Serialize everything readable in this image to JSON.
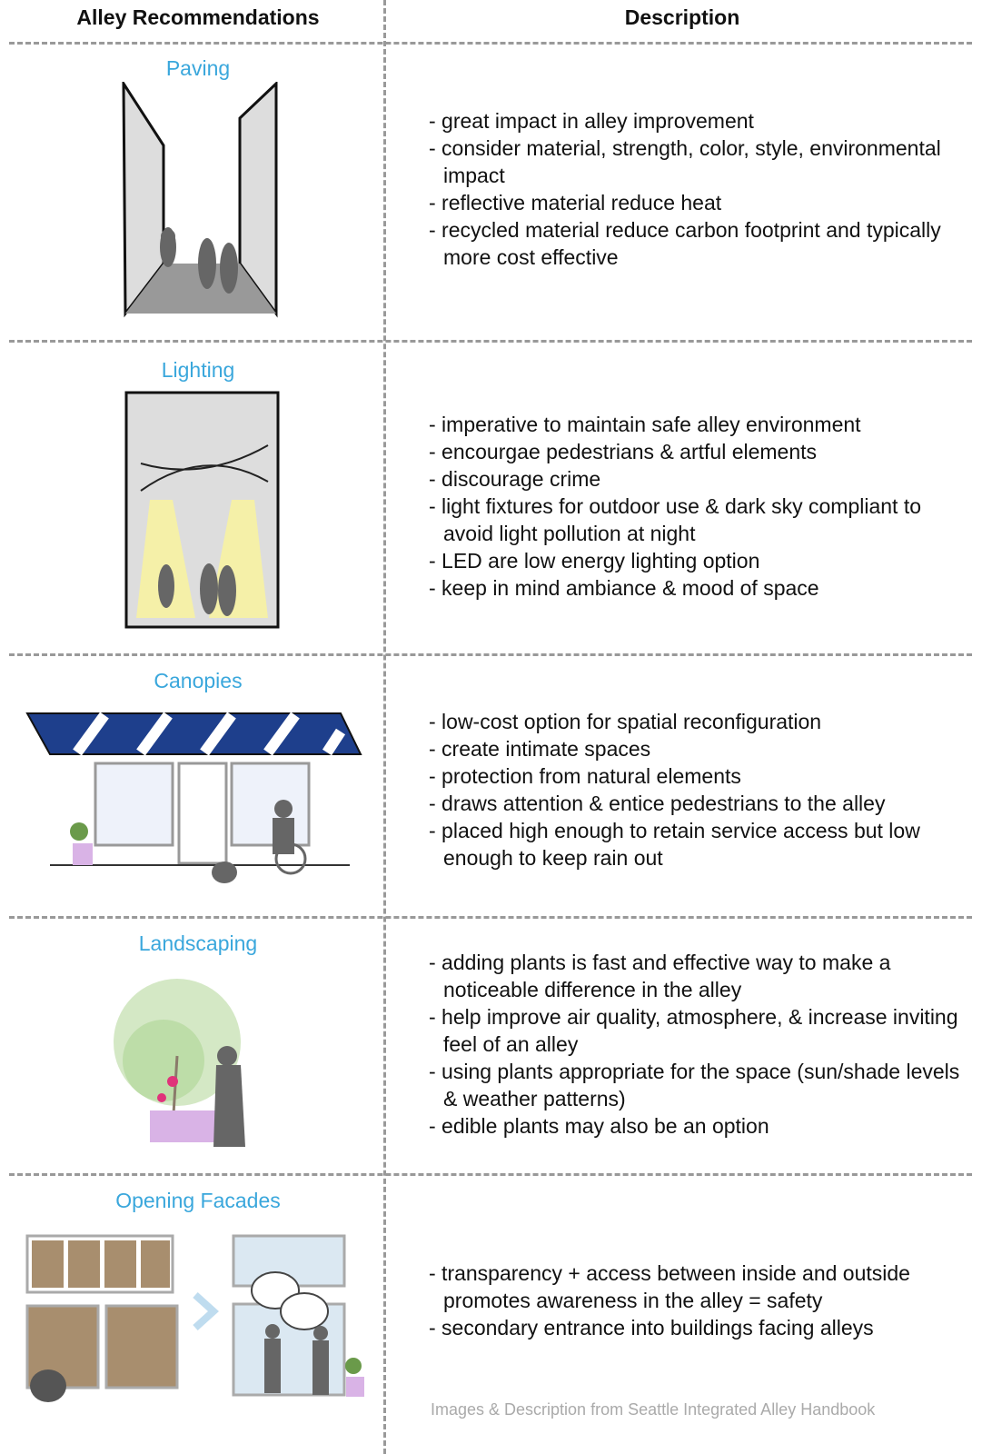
{
  "header": {
    "left": "Alley Recommendations",
    "right": "Description"
  },
  "rows": [
    {
      "title": "Paving",
      "items": [
        "- great impact in alley improvement",
        "- consider material, strength, color, style, environmental impact",
        "- reflective material reduce heat",
        "- recycled material reduce carbon footprint and typically more cost effective"
      ]
    },
    {
      "title": "Lighting",
      "items": [
        "- imperative to maintain safe alley environment",
        "- encourgae pedestrians & artful elements",
        "- discourage crime",
        "- light fixtures for outdoor use & dark sky compliant to avoid light pollution at night",
        "- LED are low energy lighting option",
        "- keep in mind ambiance & mood of space"
      ]
    },
    {
      "title": "Canopies",
      "items": [
        "- low-cost option for spatial reconfiguration",
        "- create intimate spaces",
        "- protection from natural elements",
        "- draws attention & entice pedestrians to the alley",
        "- placed high enough to retain service access but low enough to keep rain out"
      ]
    },
    {
      "title": "Landscaping",
      "items": [
        "- adding plants is fast and effective way to make a noticeable difference in the alley",
        "- help improve air quality, atmosphere, & increase inviting feel of an alley",
        "- using plants appropriate for the space (sun/shade levels & weather patterns)",
        "- edible plants may also be an option"
      ]
    },
    {
      "title": "Opening Facades",
      "items": [
        "- transparency + access between inside and outside promotes awareness in the alley = safety",
        "- secondary entrance into buildings facing alleys"
      ]
    }
  ],
  "footer": "Images & Description from Seattle Integrated Alley Handbook"
}
